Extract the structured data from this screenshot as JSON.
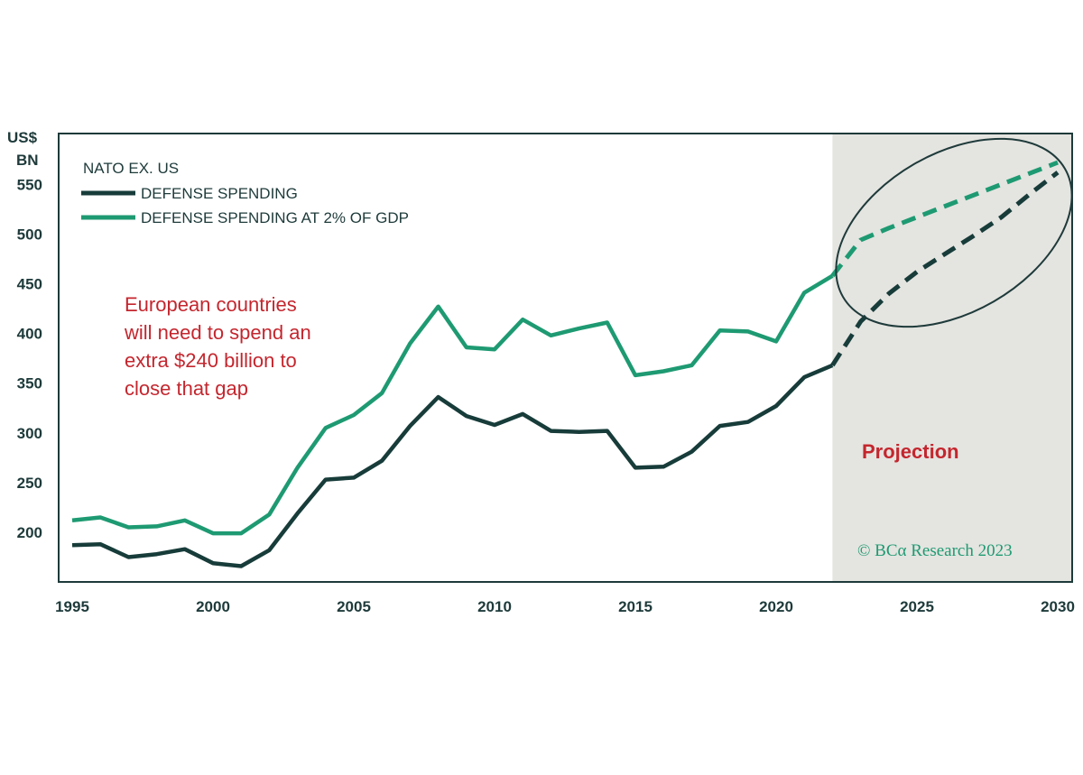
{
  "chart_data": {
    "type": "line",
    "yunit_line1": "US$",
    "yunit_line2": "BN",
    "legend_title": "NATO EX. US",
    "x_ticks": [
      1995,
      2000,
      2005,
      2010,
      2015,
      2020,
      2025,
      2030
    ],
    "y_ticks": [
      200,
      250,
      300,
      350,
      400,
      450,
      500,
      550
    ],
    "xlim": [
      1995,
      2030
    ],
    "ylim": [
      150,
      590
    ],
    "projection_start": 2022,
    "series": [
      {
        "name": "DEFENSE SPENDING",
        "color": "#173c3a",
        "x": [
          1995,
          1996,
          1997,
          1998,
          1999,
          2000,
          2001,
          2002,
          2003,
          2004,
          2005,
          2006,
          2007,
          2008,
          2009,
          2010,
          2011,
          2012,
          2013,
          2014,
          2015,
          2016,
          2017,
          2018,
          2019,
          2020,
          2021,
          2022
        ],
        "values": [
          187,
          188,
          175,
          178,
          183,
          169,
          166,
          182,
          219,
          253,
          255,
          272,
          307,
          336,
          317,
          308,
          319,
          302,
          301,
          302,
          265,
          266,
          281,
          307,
          311,
          327,
          356,
          368
        ],
        "projection_x": [
          2022,
          2023,
          2024,
          2025,
          2026,
          2027,
          2028,
          2029,
          2030
        ],
        "projection_values": [
          368,
          412,
          440,
          462,
          480,
          498,
          517,
          540,
          562
        ]
      },
      {
        "name": "DEFENSE SPENDING AT 2% OF GDP",
        "color": "#1e9a72",
        "x": [
          1995,
          1996,
          1997,
          1998,
          1999,
          2000,
          2001,
          2002,
          2003,
          2004,
          2005,
          2006,
          2007,
          2008,
          2009,
          2010,
          2011,
          2012,
          2013,
          2014,
          2015,
          2016,
          2017,
          2018,
          2019,
          2020,
          2021,
          2022
        ],
        "values": [
          212,
          215,
          205,
          206,
          212,
          199,
          199,
          218,
          265,
          305,
          318,
          340,
          390,
          427,
          386,
          384,
          414,
          398,
          405,
          411,
          358,
          362,
          368,
          403,
          402,
          392,
          441,
          458
        ],
        "projection_x": [
          2022,
          2023,
          2024,
          2025,
          2026,
          2027,
          2028,
          2029,
          2030
        ],
        "projection_values": [
          458,
          494,
          506,
          517,
          528,
          539,
          550,
          561,
          572
        ]
      }
    ],
    "annotation": [
      "European countries",
      "will need to spend an",
      "extra $240 billion to",
      "close that gap"
    ],
    "projection_label": "Projection",
    "copyright": "© BCα Research 2023"
  }
}
